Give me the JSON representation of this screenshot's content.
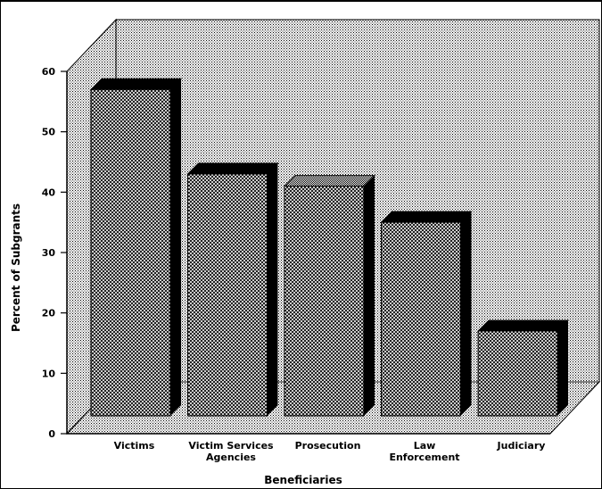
{
  "chart_data": {
    "type": "bar",
    "title": "",
    "xlabel": "Beneficiaries",
    "ylabel": "Percent of Subgrants",
    "categories": [
      [
        "Victims"
      ],
      [
        "Victim Services",
        "Agencies"
      ],
      [
        "Prosecution"
      ],
      [
        "Law",
        "Enforcement"
      ],
      [
        "Judiciary"
      ]
    ],
    "values": [
      57,
      43,
      41,
      35,
      17
    ],
    "ylim": [
      0,
      60
    ],
    "yticks": [
      0,
      10,
      20,
      30,
      40,
      50,
      60
    ],
    "grid": false,
    "legend": "none",
    "style": "3d",
    "colors": {
      "bar_front": "#bdbdbd",
      "bar_side": "#000000",
      "background": "#ffffff",
      "frame": "#000000"
    }
  }
}
